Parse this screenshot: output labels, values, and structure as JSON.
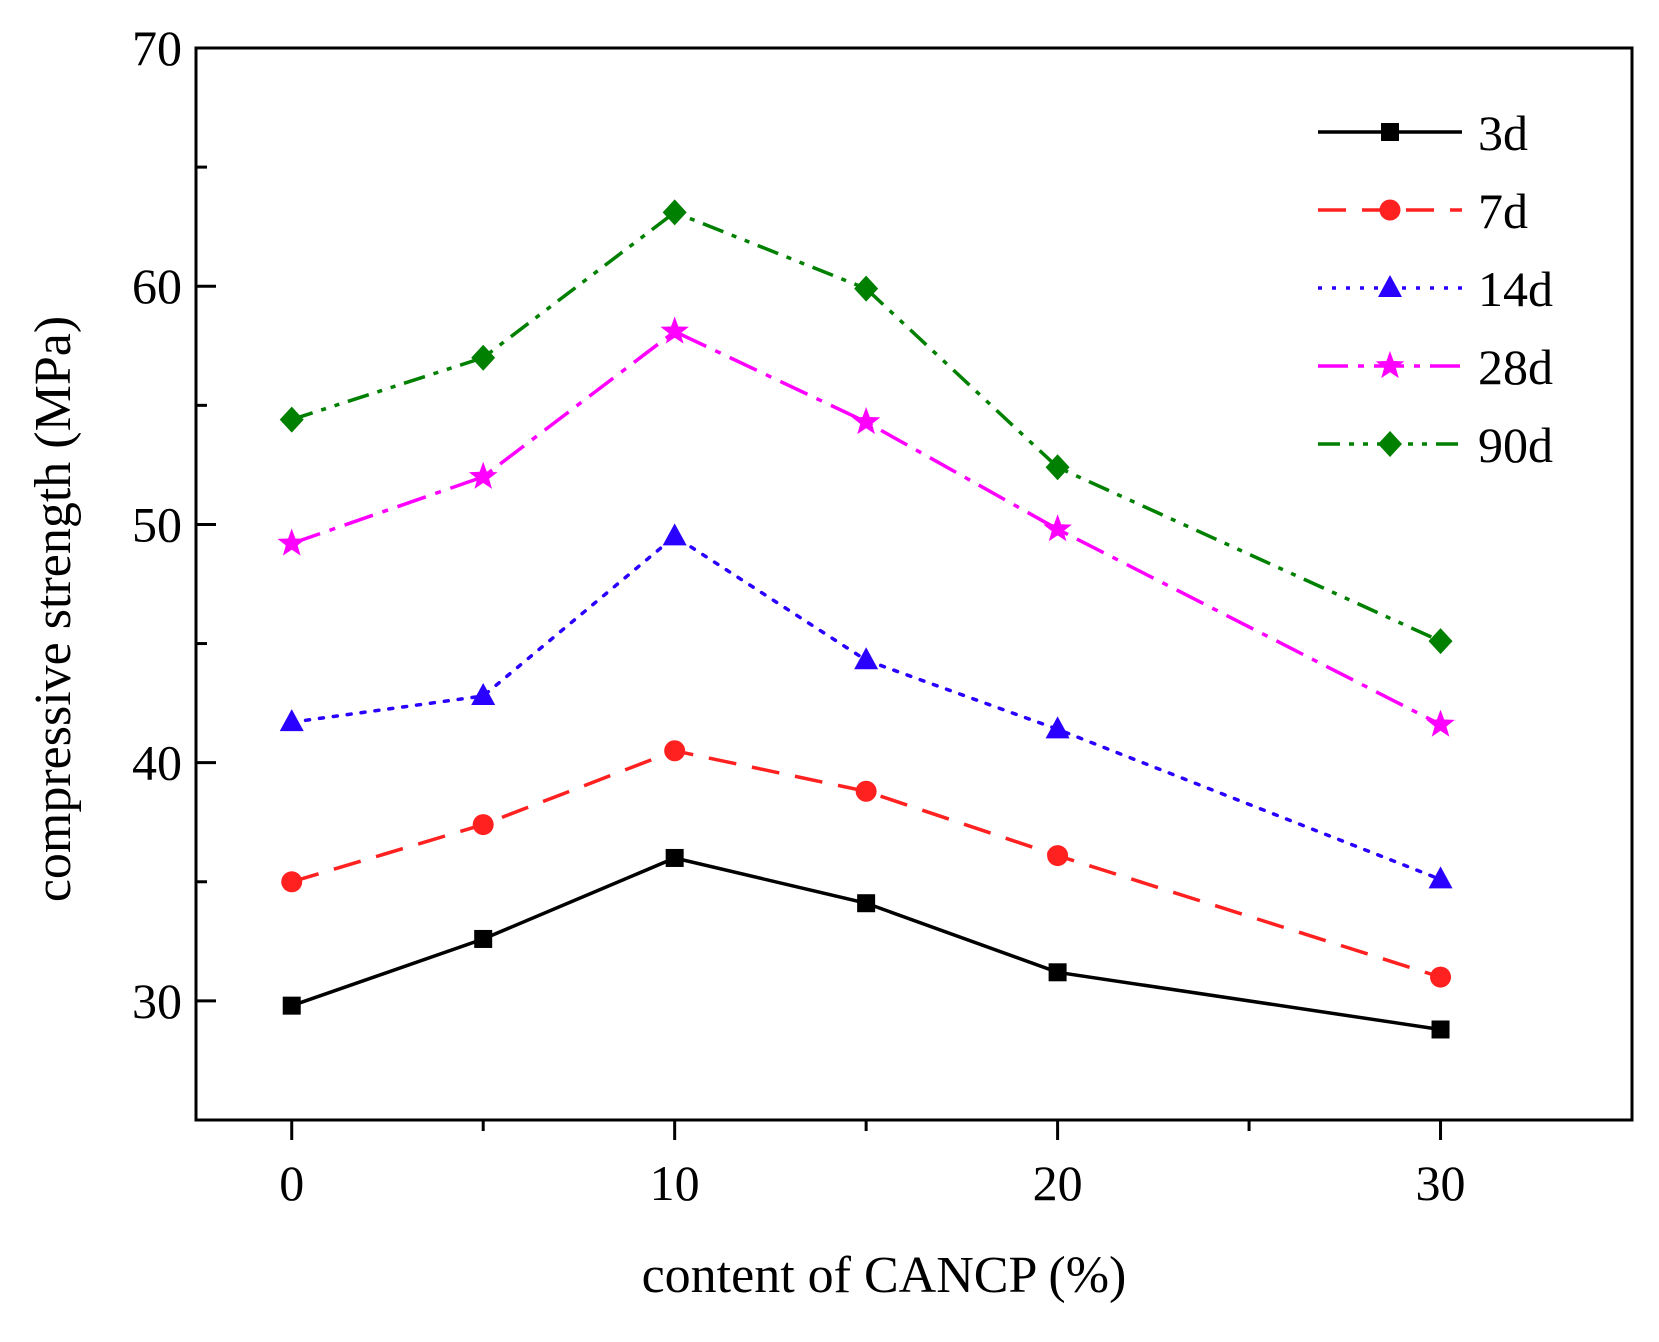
{
  "chart_data": {
    "type": "line",
    "title": "",
    "xlabel": "content of CANCP (%)",
    "ylabel": "compressive strength (MPa)",
    "xlim": [
      -2.5,
      35
    ],
    "ylim": [
      25,
      70
    ],
    "x_ticks": [
      0,
      10,
      20,
      30
    ],
    "x_minor_ticks": [
      5,
      15,
      25
    ],
    "y_ticks": [
      30,
      40,
      50,
      60,
      70
    ],
    "y_minor_ticks": [
      35,
      45,
      55,
      65
    ],
    "x_tick_labels": [
      "0",
      "10",
      "20",
      "30"
    ],
    "y_tick_labels": [
      "30",
      "40",
      "50",
      "60",
      "70"
    ],
    "legend_position": "top-right",
    "x": [
      0,
      5,
      10,
      15,
      20,
      30
    ],
    "series": [
      {
        "name": "3d",
        "values": [
          29.8,
          32.6,
          36.0,
          34.1,
          31.2,
          28.8
        ],
        "color": "#000000",
        "marker": "square",
        "dash": ""
      },
      {
        "name": "7d",
        "values": [
          35.0,
          37.4,
          40.5,
          38.8,
          36.1,
          31.0
        ],
        "color": "#ff2020",
        "marker": "circle",
        "dash": "28,16"
      },
      {
        "name": "14d",
        "values": [
          41.7,
          42.8,
          49.5,
          44.3,
          41.4,
          35.1
        ],
        "color": "#2a00ff",
        "marker": "triangle",
        "dash": "4,10"
      },
      {
        "name": "28d",
        "values": [
          49.2,
          52.0,
          58.1,
          54.3,
          49.8,
          41.6
        ],
        "color": "#ff00ff",
        "marker": "star",
        "dash": "30,10,6,10"
      },
      {
        "name": "90d",
        "values": [
          54.4,
          57.0,
          63.1,
          59.9,
          52.4,
          45.1
        ],
        "color": "#008000",
        "marker": "diamond",
        "dash": "22,9,5,9,5,9"
      }
    ]
  }
}
